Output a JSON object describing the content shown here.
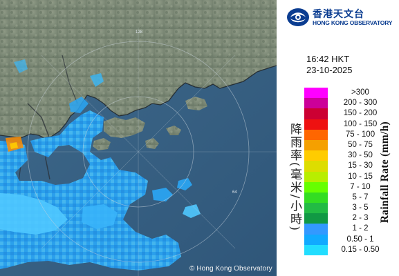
{
  "map": {
    "copyright": "© Hong Kong Observatory",
    "range_rings": [
      {
        "label": "128"
      },
      {
        "label": "64"
      }
    ]
  },
  "header": {
    "logo_cn": "香港天文台",
    "logo_en": "HONG KONG OBSERVATORY",
    "time": "16:42 HKT",
    "date": "23-10-2025"
  },
  "legend": {
    "title_cn": "降雨率(毫米/小時)",
    "title_en": "Rainfall Rate (mm/h)",
    "items": [
      {
        "label": ">300",
        "color": "#ff00ff"
      },
      {
        "label": "200 - 300",
        "color": "#cc0099"
      },
      {
        "label": "150 - 200",
        "color": "#cc0033"
      },
      {
        "label": "100 - 150",
        "color": "#ee1111"
      },
      {
        "label": "75 - 100",
        "color": "#ff6600"
      },
      {
        "label": "50 - 75",
        "color": "#f5a000"
      },
      {
        "label": "30 - 50",
        "color": "#ffcc00"
      },
      {
        "label": "15 - 30",
        "color": "#dddd00"
      },
      {
        "label": "10 - 15",
        "color": "#b8ee00"
      },
      {
        "label": "7 - 10",
        "color": "#66ff00"
      },
      {
        "label": "5 - 7",
        "color": "#33dd22"
      },
      {
        "label": "3 - 5",
        "color": "#22bb44"
      },
      {
        "label": "2 - 3",
        "color": "#119944"
      },
      {
        "label": "1 - 2",
        "color": "#3399ff"
      },
      {
        "label": "0.50 - 1",
        "color": "#11aaff"
      },
      {
        "label": "0.15 - 0.50",
        "color": "#22ddff"
      }
    ]
  }
}
